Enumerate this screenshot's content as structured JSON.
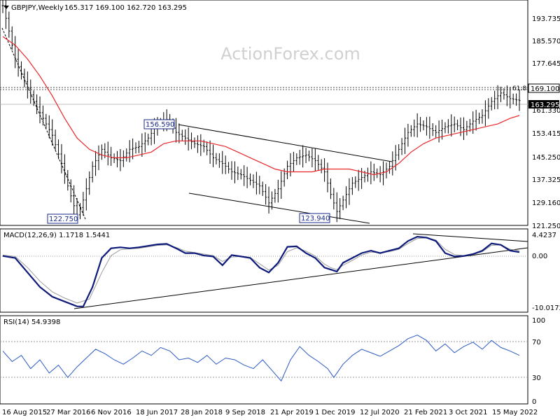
{
  "header": {
    "symbol": "GBPJPY,Weekly",
    "ohlc": "165.317 169.100 162.720 163.295",
    "watermark": "ActionForex.com"
  },
  "chart_data": [
    {
      "type": "candlestick",
      "title": "GBPJPY,Weekly",
      "ylim": [
        119,
        199
      ],
      "y_ticks": [
        "193.735",
        "185.570",
        "177.645",
        "169.100",
        "163.295",
        "161.330",
        "153.415",
        "145.250",
        "137.325",
        "129.160",
        "121.250"
      ],
      "current_price": 163.295,
      "price_line": 169.1,
      "fib_label": "61.8",
      "annotations": [
        {
          "label": "156.590",
          "value": 156.59
        },
        {
          "label": "122.750",
          "value": 122.75
        },
        {
          "label": "123.940",
          "value": 123.94
        }
      ],
      "price_series": [
        [
          0,
          197
        ],
        [
          2,
          188
        ],
        [
          4,
          178
        ],
        [
          7,
          170
        ],
        [
          10,
          163
        ],
        [
          13,
          157
        ],
        [
          16,
          151
        ],
        [
          19,
          141
        ],
        [
          21,
          133
        ],
        [
          23,
          126
        ],
        [
          24,
          122.75
        ],
        [
          26,
          128
        ],
        [
          29,
          140
        ],
        [
          32,
          146
        ],
        [
          35,
          143
        ],
        [
          38,
          142
        ],
        [
          41,
          146
        ],
        [
          44,
          147
        ],
        [
          47,
          150
        ],
        [
          50,
          155
        ],
        [
          53,
          156.59
        ],
        [
          56,
          152
        ],
        [
          59,
          150
        ],
        [
          62,
          148
        ],
        [
          65,
          147
        ],
        [
          68,
          143
        ],
        [
          71,
          141
        ],
        [
          74,
          138
        ],
        [
          77,
          137
        ],
        [
          80,
          135
        ],
        [
          83,
          133
        ],
        [
          86,
          127
        ],
        [
          89,
          132
        ],
        [
          92,
          140
        ],
        [
          95,
          143
        ],
        [
          98,
          144
        ],
        [
          101,
          142
        ],
        [
          104,
          138
        ],
        [
          106,
          130
        ],
        [
          108,
          123.94
        ],
        [
          110,
          128
        ],
        [
          113,
          134
        ],
        [
          116,
          136
        ],
        [
          119,
          138
        ],
        [
          122,
          137
        ],
        [
          125,
          140
        ],
        [
          128,
          146
        ],
        [
          131,
          152
        ],
        [
          134,
          155
        ],
        [
          137,
          154
        ],
        [
          140,
          152
        ],
        [
          143,
          154
        ],
        [
          146,
          155
        ],
        [
          149,
          153
        ],
        [
          152,
          156
        ],
        [
          155,
          158
        ],
        [
          158,
          163
        ],
        [
          161,
          166
        ],
        [
          164,
          164
        ],
        [
          167,
          163.3
        ]
      ],
      "ma_series": [
        [
          0,
          186
        ],
        [
          4,
          183
        ],
        [
          8,
          178
        ],
        [
          12,
          172
        ],
        [
          16,
          165
        ],
        [
          20,
          157
        ],
        [
          24,
          150
        ],
        [
          28,
          146
        ],
        [
          32,
          144
        ],
        [
          36,
          143
        ],
        [
          40,
          143
        ],
        [
          44,
          144
        ],
        [
          48,
          145
        ],
        [
          52,
          148
        ],
        [
          56,
          149
        ],
        [
          60,
          149
        ],
        [
          64,
          149
        ],
        [
          68,
          148
        ],
        [
          72,
          147
        ],
        [
          76,
          145
        ],
        [
          80,
          143
        ],
        [
          84,
          141
        ],
        [
          88,
          139
        ],
        [
          92,
          138
        ],
        [
          96,
          138
        ],
        [
          100,
          138
        ],
        [
          104,
          139
        ],
        [
          108,
          139
        ],
        [
          112,
          139
        ],
        [
          116,
          138
        ],
        [
          120,
          137
        ],
        [
          124,
          138
        ],
        [
          128,
          141
        ],
        [
          132,
          145
        ],
        [
          136,
          148
        ],
        [
          140,
          150
        ],
        [
          144,
          151
        ],
        [
          148,
          152
        ],
        [
          152,
          153
        ],
        [
          156,
          154
        ],
        [
          160,
          155
        ],
        [
          164,
          157
        ],
        [
          167,
          158
        ]
      ]
    },
    {
      "type": "line",
      "title": "MACD(12,26,9) 1.1718 1.5441",
      "ylim": [
        -11.2,
        6.0
      ],
      "y_ticks": [
        "4.4237",
        "0.00",
        "-10.0172"
      ],
      "macd_series": [
        [
          0,
          0.4
        ],
        [
          4,
          0
        ],
        [
          8,
          -3
        ],
        [
          12,
          -6
        ],
        [
          16,
          -8
        ],
        [
          20,
          -9
        ],
        [
          24,
          -10
        ],
        [
          26,
          -10.0172
        ],
        [
          29,
          -6
        ],
        [
          32,
          0
        ],
        [
          35,
          2
        ],
        [
          38,
          2.2
        ],
        [
          41,
          2
        ],
        [
          44,
          2.2
        ],
        [
          47,
          2.5
        ],
        [
          50,
          2.8
        ],
        [
          53,
          2.9
        ],
        [
          56,
          2
        ],
        [
          59,
          1
        ],
        [
          62,
          1
        ],
        [
          65,
          0.5
        ],
        [
          68,
          0.3
        ],
        [
          71,
          -1.5
        ],
        [
          74,
          0.6
        ],
        [
          77,
          0.3
        ],
        [
          80,
          0
        ],
        [
          83,
          -2
        ],
        [
          86,
          -3
        ],
        [
          89,
          -1
        ],
        [
          92,
          2.3
        ],
        [
          95,
          2.4
        ],
        [
          98,
          1
        ],
        [
          101,
          0
        ],
        [
          104,
          -2
        ],
        [
          106,
          -2.4
        ],
        [
          108,
          -2.8
        ],
        [
          110,
          -1
        ],
        [
          113,
          0
        ],
        [
          116,
          1
        ],
        [
          119,
          1.5
        ],
        [
          122,
          1
        ],
        [
          125,
          1.5
        ],
        [
          128,
          2
        ],
        [
          131,
          3.5
        ],
        [
          134,
          4.4
        ],
        [
          137,
          4.2
        ],
        [
          140,
          3.5
        ],
        [
          143,
          1
        ],
        [
          146,
          0.3
        ],
        [
          149,
          0.4
        ],
        [
          152,
          0.8
        ],
        [
          155,
          1.5
        ],
        [
          158,
          3
        ],
        [
          161,
          2.7
        ],
        [
          164,
          1.5
        ],
        [
          167,
          1.2
        ]
      ],
      "signal_series": [
        [
          0,
          0.6
        ],
        [
          4,
          0.3
        ],
        [
          8,
          -2
        ],
        [
          12,
          -4.8
        ],
        [
          16,
          -7
        ],
        [
          20,
          -8.3
        ],
        [
          24,
          -9.3
        ],
        [
          28,
          -8.5
        ],
        [
          32,
          -3
        ],
        [
          35,
          0.5
        ],
        [
          38,
          1.7
        ],
        [
          41,
          1.9
        ],
        [
          44,
          2
        ],
        [
          47,
          2.3
        ],
        [
          50,
          2.6
        ],
        [
          53,
          2.7
        ],
        [
          56,
          2.2
        ],
        [
          59,
          1.4
        ],
        [
          62,
          1.1
        ],
        [
          65,
          0.8
        ],
        [
          68,
          0.5
        ],
        [
          71,
          -0.7
        ],
        [
          74,
          0.2
        ],
        [
          77,
          0.3
        ],
        [
          80,
          0.1
        ],
        [
          83,
          -1.2
        ],
        [
          86,
          -2.5
        ],
        [
          89,
          -1.5
        ],
        [
          92,
          1.3
        ],
        [
          95,
          2.1
        ],
        [
          98,
          1.4
        ],
        [
          101,
          0.4
        ],
        [
          104,
          -1.3
        ],
        [
          106,
          -2
        ],
        [
          108,
          -2.4
        ],
        [
          110,
          -1.5
        ],
        [
          113,
          -0.5
        ],
        [
          116,
          0.6
        ],
        [
          119,
          1.2
        ],
        [
          122,
          1.1
        ],
        [
          125,
          1.3
        ],
        [
          128,
          1.8
        ],
        [
          131,
          3
        ],
        [
          134,
          4
        ],
        [
          137,
          4.2
        ],
        [
          140,
          3.7
        ],
        [
          143,
          1.8
        ],
        [
          146,
          0.7
        ],
        [
          149,
          0.5
        ],
        [
          152,
          0.7
        ],
        [
          155,
          1.3
        ],
        [
          158,
          2.6
        ],
        [
          161,
          2.7
        ],
        [
          164,
          1.8
        ],
        [
          167,
          1.5
        ]
      ]
    },
    {
      "type": "line",
      "title": "RSI(14) 54.9398",
      "ylim": [
        0,
        100
      ],
      "y_ticks": [
        "100",
        "70",
        "30",
        "0"
      ],
      "levels": [
        70,
        30
      ],
      "rsi_series": [
        [
          0,
          60
        ],
        [
          3,
          48
        ],
        [
          6,
          55
        ],
        [
          9,
          40
        ],
        [
          12,
          50
        ],
        [
          15,
          35
        ],
        [
          18,
          44
        ],
        [
          21,
          30
        ],
        [
          24,
          42
        ],
        [
          27,
          52
        ],
        [
          30,
          62
        ],
        [
          33,
          57
        ],
        [
          36,
          50
        ],
        [
          39,
          45
        ],
        [
          42,
          52
        ],
        [
          45,
          60
        ],
        [
          48,
          55
        ],
        [
          51,
          64
        ],
        [
          54,
          60
        ],
        [
          57,
          50
        ],
        [
          60,
          52
        ],
        [
          63,
          47
        ],
        [
          66,
          55
        ],
        [
          69,
          45
        ],
        [
          72,
          52
        ],
        [
          75,
          50
        ],
        [
          78,
          44
        ],
        [
          81,
          40
        ],
        [
          84,
          50
        ],
        [
          87,
          38
        ],
        [
          90,
          26
        ],
        [
          93,
          50
        ],
        [
          96,
          65
        ],
        [
          99,
          55
        ],
        [
          102,
          48
        ],
        [
          105,
          40
        ],
        [
          107,
          30
        ],
        [
          110,
          45
        ],
        [
          113,
          55
        ],
        [
          116,
          62
        ],
        [
          119,
          58
        ],
        [
          122,
          54
        ],
        [
          125,
          60
        ],
        [
          128,
          66
        ],
        [
          131,
          74
        ],
        [
          134,
          78
        ],
        [
          137,
          72
        ],
        [
          140,
          60
        ],
        [
          143,
          68
        ],
        [
          146,
          58
        ],
        [
          149,
          65
        ],
        [
          152,
          70
        ],
        [
          155,
          62
        ],
        [
          158,
          72
        ],
        [
          161,
          64
        ],
        [
          164,
          60
        ],
        [
          167,
          55
        ]
      ]
    }
  ],
  "x_axis": {
    "labels": [
      "16 Aug 2015",
      "27 Mar 2016",
      "6 Nov 2016",
      "18 Jun 2017",
      "28 Jan 2018",
      "9 Sep 2018",
      "21 Apr 2019",
      "1 Dec 2019",
      "12 Jul 2020",
      "21 Feb 2021",
      "3 Oct 2021",
      "15 May 2022"
    ]
  }
}
